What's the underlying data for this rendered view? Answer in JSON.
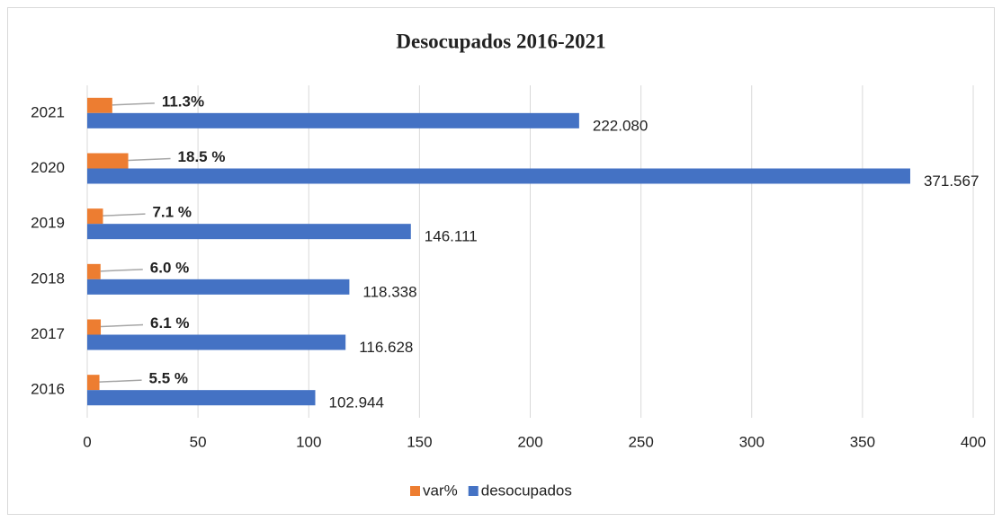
{
  "chart_data": {
    "type": "hbar",
    "title": "Desocupados 2016-2021",
    "categories": [
      "2016",
      "2017",
      "2018",
      "2019",
      "2020",
      "2021"
    ],
    "series": [
      {
        "name": "var%",
        "color": "#ed7d31",
        "values": [
          5.5,
          6.1,
          6.0,
          7.1,
          18.5,
          11.3
        ],
        "value_labels": [
          "5.5 %",
          "6.1 %",
          "6.0 %",
          "7.1 %",
          "18.5 %",
          "11.3%"
        ]
      },
      {
        "name": "desocupados",
        "color": "#4472c4",
        "values": [
          102.944,
          116.628,
          118.338,
          146.111,
          371.567,
          222.08
        ],
        "value_labels": [
          "102.944",
          "116.628",
          "118.338",
          "146.111",
          "371.567",
          "222.080"
        ]
      }
    ],
    "xlim": [
      0,
      400
    ],
    "xticks": [
      0,
      50,
      100,
      150,
      200,
      250,
      300,
      350,
      400
    ],
    "grid": true,
    "legend": "bottom"
  }
}
